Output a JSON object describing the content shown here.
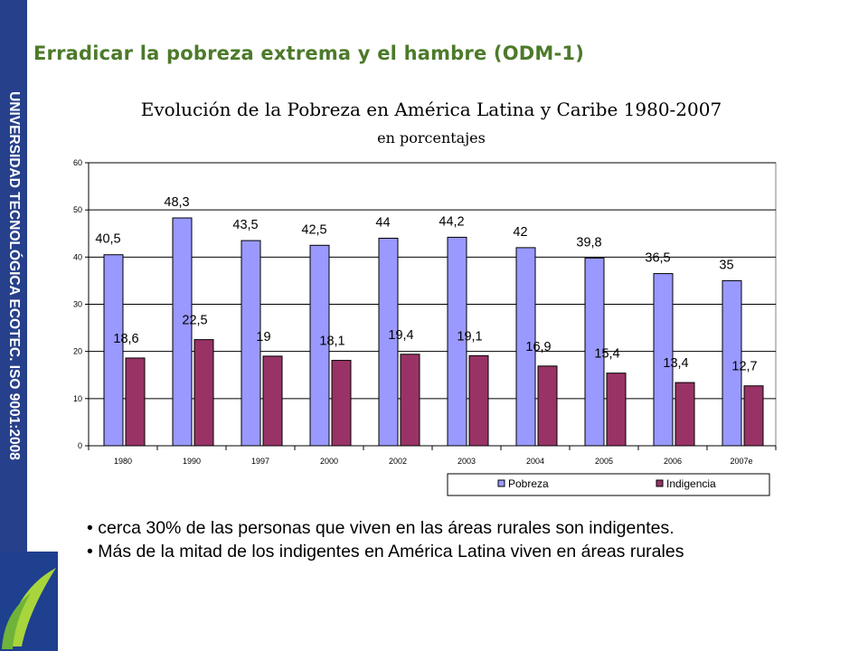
{
  "sidebar": {
    "text": "UNIVERSIDAD TECNOLÓGICA ECOTEC. ISO 9001:2008",
    "color": "#27408b"
  },
  "slide_title": "Erradicar la pobreza extrema y el hambre (ODM-1)",
  "bullets": [
    "cerca 30% de las personas que viven en las áreas rurales son indigentes.",
    "Más de la mitad de los indigentes en América Latina viven en áreas rurales"
  ],
  "chart_data": {
    "type": "bar",
    "title": "Evolución de la Pobreza en América Latina y Caribe 1980-2007",
    "subtitle": "en porcentajes",
    "categories": [
      "1980",
      "1990",
      "1997",
      "2000",
      "2002",
      "2003",
      "2004",
      "2005",
      "2006",
      "2007e"
    ],
    "series": [
      {
        "name": "Pobreza",
        "color": "#9999ff",
        "values": [
          40.5,
          48.3,
          43.5,
          42.5,
          44,
          44.2,
          42,
          39.8,
          36.5,
          35
        ],
        "labels": [
          "40,5",
          "48,3",
          "43,5",
          "42,5",
          "44",
          "44,2",
          "42",
          "39,8",
          "36,5",
          "35"
        ]
      },
      {
        "name": "Indigencia",
        "color": "#993366",
        "values": [
          18.6,
          22.5,
          19,
          18.1,
          19.4,
          19.1,
          16.9,
          15.4,
          13.4,
          12.7
        ],
        "labels": [
          "18,6",
          "22,5",
          "19",
          "18,1",
          "19,4",
          "19,1",
          "16,9",
          "15,4",
          "13,4",
          "12,7"
        ]
      }
    ],
    "ylim": [
      0,
      60
    ],
    "yticks": [
      0,
      10,
      20,
      30,
      40,
      50,
      60
    ],
    "grid": true,
    "legend": "bottom-right"
  }
}
